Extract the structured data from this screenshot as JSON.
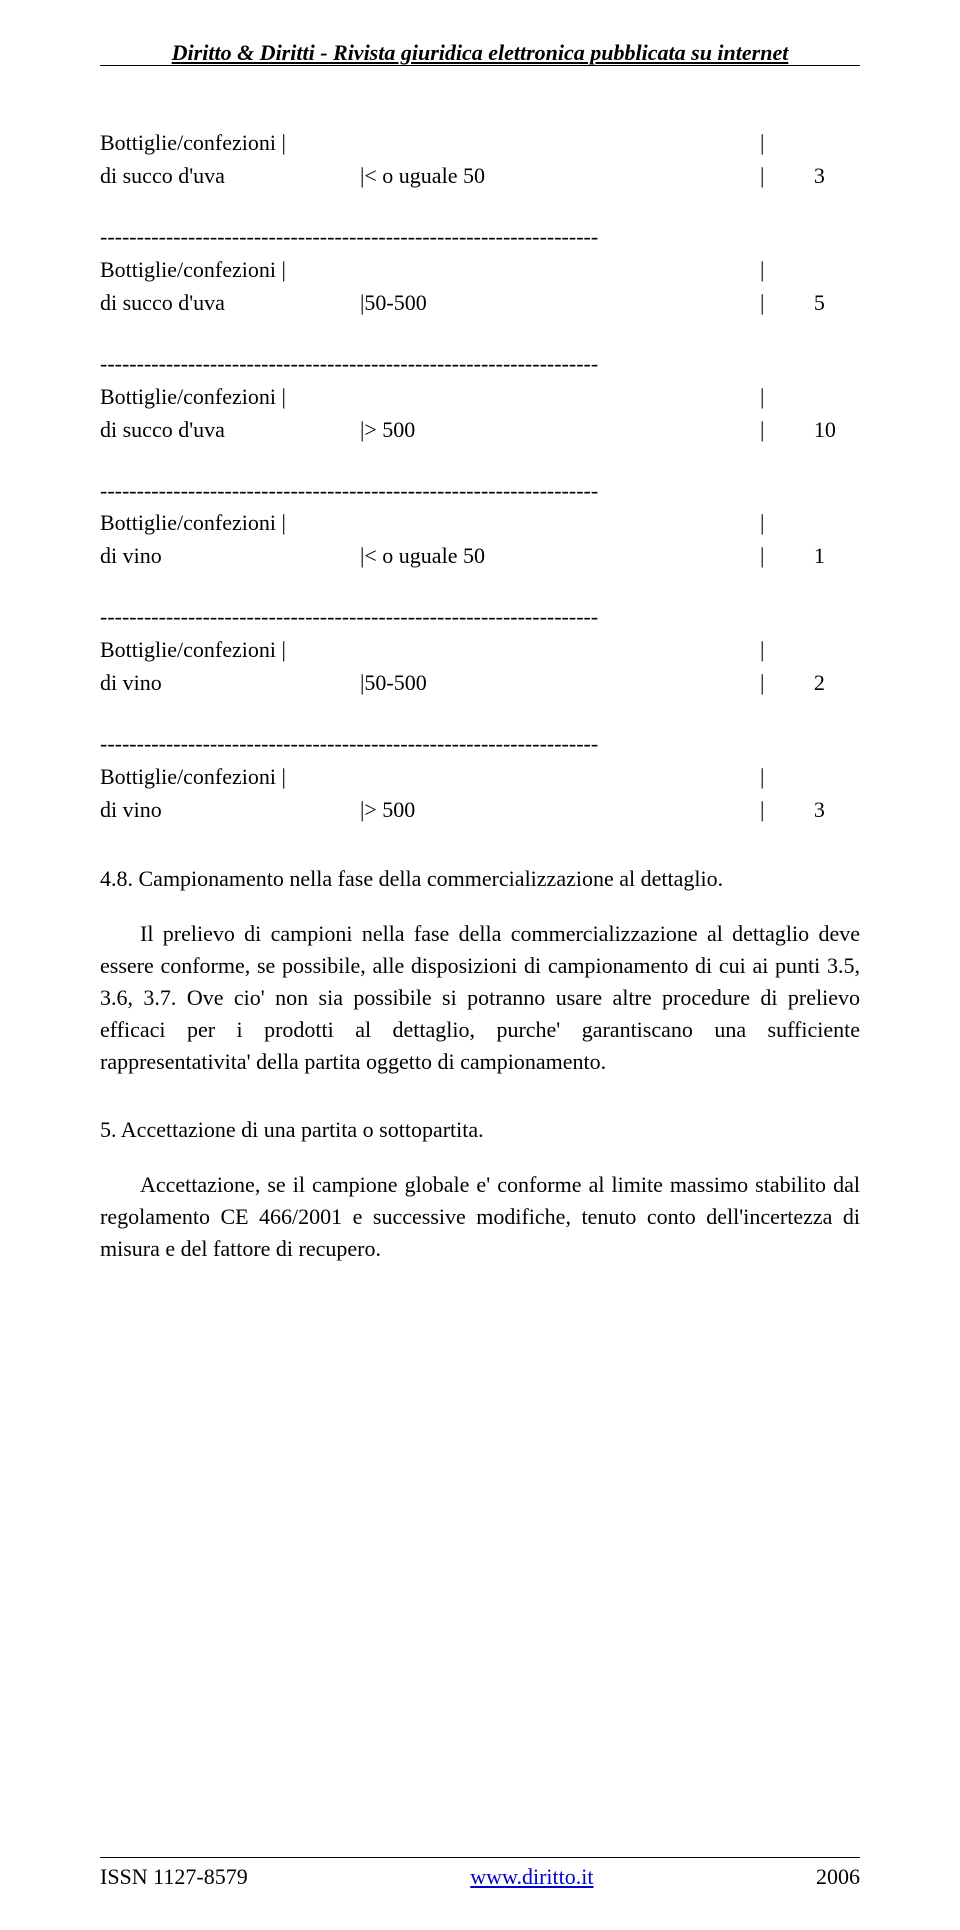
{
  "header": {
    "title": "Diritto & Diritti - Rivista giuridica elettronica pubblicata su internet"
  },
  "table": {
    "divider": "--------------------------------------------------------------------",
    "rows": [
      {
        "label1": "Bottiglie/confezioni |",
        "suffix1": "|",
        "label2": "di succo d'uva",
        "range": "|< o uguale 50",
        "sep2": "|",
        "value": "3"
      },
      {
        "label1": "Bottiglie/confezioni |",
        "suffix1": "|",
        "label2": "di succo d'uva",
        "range": "|50-500",
        "sep2": "|",
        "value": "5"
      },
      {
        "label1": "Bottiglie/confezioni |",
        "suffix1": "|",
        "label2": "di succo d'uva",
        "range": "|> 500",
        "sep2": "|",
        "value": "10"
      },
      {
        "label1": "Bottiglie/confezioni |",
        "suffix1": "|",
        "label2": "di vino",
        "range": "|< o uguale 50",
        "sep2": "|",
        "value": "1"
      },
      {
        "label1": "Bottiglie/confezioni |",
        "suffix1": "|",
        "label2": "di vino",
        "range": "|50-500",
        "sep2": "|",
        "value": "2"
      },
      {
        "label1": "Bottiglie/confezioni |",
        "suffix1": "|",
        "label2": "di vino",
        "range": "|> 500",
        "sep2": "|",
        "value": "3"
      }
    ]
  },
  "sections": {
    "s48_title": "4.8. Campionamento nella fase della commercializzazione al dettaglio.",
    "s48_body": "Il   prelievo   di campioni nella fase della commercializzazione al dettaglio  deve  essere  conforme, se possibile, alle disposizioni di campionamento  di  cui  ai  punti  3.5,  3.6,  3.7.  Ove cio' non sia possibile  si potranno usare altre procedure di prelievo efficaci per i prodotti   al   dettaglio,   purche'   garantiscano   una   sufficiente rappresentativita' della partita oggetto di campionamento.",
    "s5_title": "5. Accettazione di una partita o sottopartita.",
    "s5_body": "Accettazione,  se  il  campione  globale  e'  conforme  al limite massimo  stabilito  dal  regolamento  CE  466/2001 e successive modifiche, tenuto conto dell'incertezza di misura e del fattore di recupero."
  },
  "footer": {
    "issn": "ISSN 1127-8579",
    "url_label": "www.diritto.it",
    "year": "2006"
  }
}
